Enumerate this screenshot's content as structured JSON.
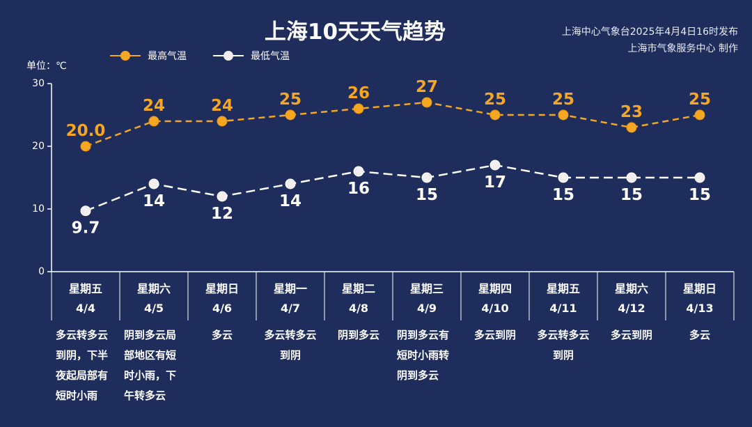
{
  "title": "上海10天天气趋势",
  "issuer": {
    "line1": "上海中心气象台2025年4月4日16时发布",
    "line2": "上海市气象服务中心 制作"
  },
  "unit_label": "单位：℃",
  "colors": {
    "background": "#1f2d5c",
    "high": "#f5a623",
    "low": "#ffffff",
    "axis": "#ffffff"
  },
  "legend": {
    "high": "最高气温",
    "low": "最低气温"
  },
  "days": [
    {
      "weekday": "星期五",
      "date": "4/4",
      "weather": "多云转多云到阴，下半夜起局部有短时小雨"
    },
    {
      "weekday": "星期六",
      "date": "4/5",
      "weather": "阴到多云局部地区有短时小雨，下午转多云"
    },
    {
      "weekday": "星期日",
      "date": "4/6",
      "weather": "多云"
    },
    {
      "weekday": "星期一",
      "date": "4/7",
      "weather": "多云转多云到阴"
    },
    {
      "weekday": "星期二",
      "date": "4/8",
      "weather": "阴到多云"
    },
    {
      "weekday": "星期三",
      "date": "4/9",
      "weather": "阴到多云有短时小雨转阴到多云"
    },
    {
      "weekday": "星期四",
      "date": "4/10",
      "weather": "多云到阴"
    },
    {
      "weekday": "星期五",
      "date": "4/11",
      "weather": "多云转多云到阴"
    },
    {
      "weekday": "星期六",
      "date": "4/12",
      "weather": "多云到阴"
    },
    {
      "weekday": "星期日",
      "date": "4/13",
      "weather": "多云"
    }
  ],
  "chart_data": {
    "type": "line",
    "title": "上海10天天气趋势",
    "ylabel": "单位：℃",
    "ylim": [
      0,
      30
    ],
    "yticks": [
      0,
      10,
      20,
      30
    ],
    "grid": false,
    "legend_position": "top-left",
    "categories": [
      "4/4",
      "4/5",
      "4/6",
      "4/7",
      "4/8",
      "4/9",
      "4/10",
      "4/11",
      "4/12",
      "4/13"
    ],
    "series": [
      {
        "name": "最高气温",
        "color": "#f5a623",
        "values": [
          20.0,
          24,
          24,
          25,
          26,
          27,
          25,
          25,
          23,
          25
        ],
        "labels": [
          "20.0",
          "24",
          "24",
          "25",
          "26",
          "27",
          "25",
          "25",
          "23",
          "25"
        ]
      },
      {
        "name": "最低气温",
        "color": "#ffffff",
        "values": [
          9.7,
          14,
          12,
          14,
          16,
          15,
          17,
          15,
          15,
          15
        ],
        "labels": [
          "9.7",
          "14",
          "12",
          "14",
          "16",
          "15",
          "17",
          "15",
          "15",
          "15"
        ]
      }
    ]
  }
}
